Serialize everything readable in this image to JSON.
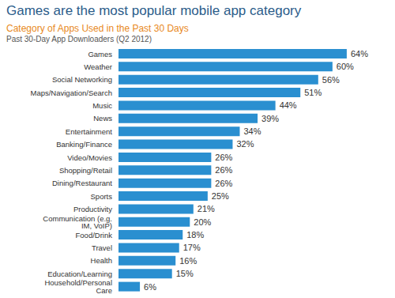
{
  "chart_data": {
    "type": "bar",
    "orientation": "horizontal",
    "title": "Games are the most popular mobile app category",
    "subtitle": "Category of Apps Used in the Past 30 Days",
    "annotations": [
      "Past 30-Day App Downloaders (Q2 2012)"
    ],
    "categories": [
      "Games",
      "Weather",
      "Social Networking",
      "Maps/Navigation/Search",
      "Music",
      "News",
      "Entertainment",
      "Banking/Finance",
      "Video/Movies",
      "Shopping/Retail",
      "Dining/Restaurant",
      "Sports",
      "Productivity",
      "Communication (e.g. IM, VoIP)",
      "Food/Drink",
      "Travel",
      "Health",
      "Education/Learning",
      "Household/Personal Care"
    ],
    "values": [
      64,
      60,
      56,
      51,
      44,
      39,
      34,
      32,
      26,
      26,
      26,
      25,
      21,
      20,
      18,
      17,
      16,
      15,
      6
    ],
    "value_labels": [
      "64%",
      "60%",
      "56%",
      "51%",
      "44%",
      "39%",
      "34%",
      "32%",
      "26%",
      "26%",
      "26%",
      "25%",
      "21%",
      "20%",
      "18%",
      "17%",
      "16%",
      "15%",
      "6%"
    ],
    "color": "#2a8fd0",
    "xlim": [
      0,
      70
    ],
    "data_labels": true,
    "tick_labels": "y",
    "grid": false
  }
}
